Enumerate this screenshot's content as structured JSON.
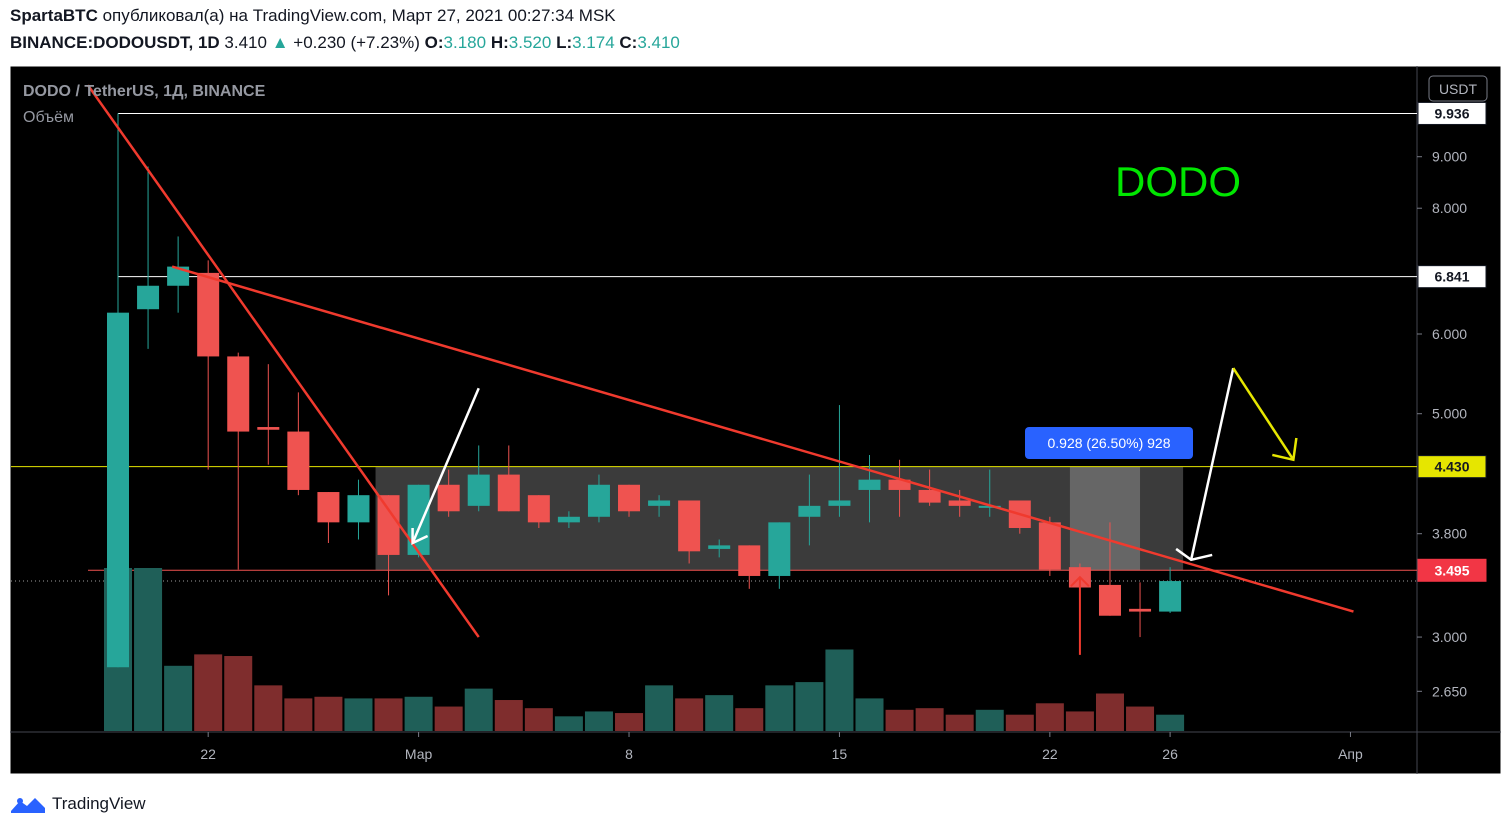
{
  "header": {
    "author": "SpartaBTC",
    "published_text": "опубликовал(а) на TradingView.com, Март 27, 2021 00:27:34 MSK",
    "symbol": "BINANCE:DODOUSDT, 1D",
    "last": "3.410",
    "change": "+0.230 (+7.23%)",
    "o_label": "O:",
    "o": "3.180",
    "h_label": "H:",
    "h": "3.520",
    "l_label": "L:",
    "l": "3.174",
    "c_label": "C:",
    "c": "3.410"
  },
  "legend": {
    "title": "DODO / TetherUS, 1Д, BINANCE",
    "volume": "Объём"
  },
  "annotation": {
    "text": "DODO",
    "color": "#00e600"
  },
  "measure_label": "0.928 (26.50%) 928",
  "currency_badge": "USDT",
  "colors": {
    "bg": "#000000",
    "up": "#26a69a",
    "down": "#ef5350",
    "trend": "#f03a2e",
    "box": "#6b6b6b",
    "yellow": "#e6e600",
    "measure": "#2962ff"
  },
  "footer": {
    "brand": "TradingView"
  },
  "chart_data": {
    "type": "candlestick",
    "title": "DODO / TetherUS, 1Д, BINANCE",
    "y_scale": "log",
    "ylim": [
      2.42,
      11.05
    ],
    "y_ticks": [
      "2.650",
      "3.000",
      "3.800",
      "5.000",
      "6.000",
      "8.000",
      "9.000"
    ],
    "y_tick_values": [
      2.65,
      3.0,
      3.8,
      5.0,
      6.0,
      8.0,
      9.0
    ],
    "x_ticks": [
      {
        "label": "22",
        "day": 3
      },
      {
        "label": "Мар",
        "day": 10
      },
      {
        "label": "8",
        "day": 17
      },
      {
        "label": "15",
        "day": 24
      },
      {
        "label": "22",
        "day": 31
      },
      {
        "label": "26",
        "day": 35
      },
      {
        "label": "Апр",
        "day": 41
      }
    ],
    "candles": [
      {
        "day": 0,
        "o": 2.8,
        "h": 9.94,
        "l": 2.8,
        "c": 6.3,
        "v": 100
      },
      {
        "day": 1,
        "o": 6.35,
        "h": 8.8,
        "l": 5.8,
        "c": 6.7,
        "v": 100
      },
      {
        "day": 2,
        "o": 6.7,
        "h": 7.5,
        "l": 6.3,
        "c": 7.0,
        "v": 40
      },
      {
        "day": 3,
        "o": 6.9,
        "h": 7.1,
        "l": 4.4,
        "c": 5.7,
        "v": 47
      },
      {
        "day": 4,
        "o": 5.7,
        "h": 5.75,
        "l": 3.5,
        "c": 4.8,
        "v": 46
      },
      {
        "day": 5,
        "o": 4.85,
        "h": 5.6,
        "l": 4.45,
        "c": 4.82,
        "v": 28
      },
      {
        "day": 6,
        "o": 4.8,
        "h": 5.25,
        "l": 4.15,
        "c": 4.2,
        "v": 20
      },
      {
        "day": 7,
        "o": 4.18,
        "h": 4.18,
        "l": 3.72,
        "c": 3.9,
        "v": 21
      },
      {
        "day": 8,
        "o": 3.9,
        "h": 4.3,
        "l": 3.75,
        "c": 4.15,
        "v": 20
      },
      {
        "day": 9,
        "o": 4.15,
        "h": 4.15,
        "l": 3.3,
        "c": 3.62,
        "v": 20
      },
      {
        "day": 10,
        "o": 3.62,
        "h": 4.25,
        "l": 3.6,
        "c": 4.25,
        "v": 21
      },
      {
        "day": 11,
        "o": 4.25,
        "h": 4.4,
        "l": 3.95,
        "c": 4.0,
        "v": 15
      },
      {
        "day": 12,
        "o": 4.05,
        "h": 4.65,
        "l": 4.0,
        "c": 4.35,
        "v": 26
      },
      {
        "day": 13,
        "o": 4.35,
        "h": 4.65,
        "l": 4.0,
        "c": 4.0,
        "v": 19
      },
      {
        "day": 14,
        "o": 4.15,
        "h": 4.15,
        "l": 3.85,
        "c": 3.9,
        "v": 14
      },
      {
        "day": 15,
        "o": 3.9,
        "h": 4.0,
        "l": 3.85,
        "c": 3.95,
        "v": 9
      },
      {
        "day": 16,
        "o": 3.95,
        "h": 4.35,
        "l": 3.9,
        "c": 4.25,
        "v": 12
      },
      {
        "day": 17,
        "o": 4.25,
        "h": 4.25,
        "l": 3.95,
        "c": 4.0,
        "v": 11
      },
      {
        "day": 18,
        "o": 4.05,
        "h": 4.15,
        "l": 3.95,
        "c": 4.1,
        "v": 28
      },
      {
        "day": 19,
        "o": 4.1,
        "h": 4.1,
        "l": 3.55,
        "c": 3.65,
        "v": 20
      },
      {
        "day": 20,
        "o": 3.67,
        "h": 3.75,
        "l": 3.6,
        "c": 3.7,
        "v": 22
      },
      {
        "day": 21,
        "o": 3.7,
        "h": 3.7,
        "l": 3.35,
        "c": 3.45,
        "v": 14
      },
      {
        "day": 22,
        "o": 3.45,
        "h": 3.9,
        "l": 3.35,
        "c": 3.9,
        "v": 28
      },
      {
        "day": 23,
        "o": 3.95,
        "h": 4.35,
        "l": 3.7,
        "c": 4.05,
        "v": 30
      },
      {
        "day": 24,
        "o": 4.05,
        "h": 5.1,
        "l": 3.95,
        "c": 4.1,
        "v": 50
      },
      {
        "day": 25,
        "o": 4.2,
        "h": 4.55,
        "l": 3.9,
        "c": 4.3,
        "v": 20
      },
      {
        "day": 26,
        "o": 4.3,
        "h": 4.5,
        "l": 3.95,
        "c": 4.2,
        "v": 13
      },
      {
        "day": 27,
        "o": 4.2,
        "h": 4.4,
        "l": 4.05,
        "c": 4.08,
        "v": 14
      },
      {
        "day": 28,
        "o": 4.1,
        "h": 4.2,
        "l": 3.95,
        "c": 4.05,
        "v": 10
      },
      {
        "day": 29,
        "o": 4.05,
        "h": 4.4,
        "l": 3.95,
        "c": 4.05,
        "v": 13
      },
      {
        "day": 30,
        "o": 4.1,
        "h": 4.1,
        "l": 3.8,
        "c": 3.85,
        "v": 10
      },
      {
        "day": 31,
        "o": 3.9,
        "h": 3.95,
        "l": 3.45,
        "c": 3.5,
        "v": 17
      },
      {
        "day": 32,
        "o": 3.52,
        "h": 3.55,
        "l": 3.3,
        "c": 3.36,
        "v": 12
      },
      {
        "day": 33,
        "o": 3.38,
        "h": 3.9,
        "l": 3.15,
        "c": 3.15,
        "v": 23
      },
      {
        "day": 34,
        "o": 3.2,
        "h": 3.4,
        "l": 3.0,
        "c": 3.18,
        "v": 15
      },
      {
        "day": 35,
        "o": 3.18,
        "h": 3.52,
        "l": 3.17,
        "c": 3.41,
        "v": 10
      }
    ],
    "horizontal_levels": [
      {
        "value": 9.936,
        "label": "9.936",
        "color": "#ffffff"
      },
      {
        "value": 6.841,
        "label": "6.841",
        "color": "#ffffff"
      },
      {
        "value": 4.43,
        "label": "4.430",
        "color": "#e6e600"
      },
      {
        "value": 3.495,
        "label": "3.495",
        "color": "#ef5350"
      }
    ],
    "current_price": 3.41
  }
}
